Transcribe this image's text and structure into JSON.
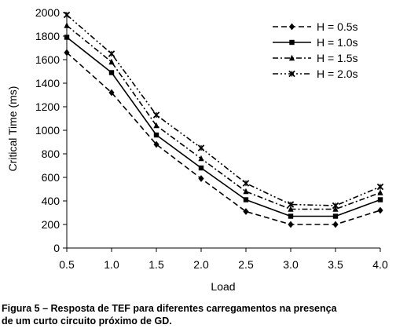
{
  "chart_data": {
    "type": "line",
    "x": [
      0.5,
      1.0,
      1.5,
      2.0,
      2.5,
      3.0,
      3.5,
      4.0
    ],
    "x_tick_labels": [
      "0.5",
      "1.0",
      "1.5",
      "2.0",
      "2.5",
      "3.0",
      "3.5",
      "4.0"
    ],
    "y_ticks": [
      0,
      200,
      400,
      600,
      800,
      1000,
      1200,
      1400,
      1600,
      1800,
      2000
    ],
    "xlabel": "Load",
    "ylabel": "Critical Time (ms)",
    "xlim": [
      0.5,
      4.0
    ],
    "ylim": [
      0,
      2000
    ],
    "grid": false,
    "legend_position": "top-right",
    "series": [
      {
        "name": "H = 0.5s",
        "values": [
          1660,
          1320,
          880,
          590,
          310,
          200,
          200,
          320
        ],
        "marker": "diamond",
        "dash": "dashed"
      },
      {
        "name": "H = 1.0s",
        "values": [
          1790,
          1490,
          960,
          680,
          410,
          270,
          270,
          410
        ],
        "marker": "square",
        "dash": "solid"
      },
      {
        "name": "H = 1.5s",
        "values": [
          1890,
          1580,
          1040,
          760,
          480,
          330,
          330,
          470
        ],
        "marker": "triangle",
        "dash": "dashdot"
      },
      {
        "name": "H = 2.0s",
        "values": [
          1980,
          1650,
          1130,
          850,
          550,
          370,
          360,
          520
        ],
        "marker": "cross",
        "dash": "dashdotdot"
      }
    ]
  },
  "caption": {
    "line1": "Figura 5 – Resposta de TEF para diferentes carregamentos na presença",
    "line2": "de um curto circuito próximo de GD."
  }
}
